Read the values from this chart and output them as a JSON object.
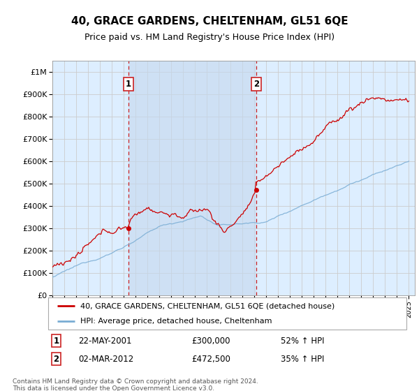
{
  "title": "40, GRACE GARDENS, CHELTENHAM, GL51 6QE",
  "subtitle": "Price paid vs. HM Land Registry's House Price Index (HPI)",
  "ylabel_ticks": [
    "£0",
    "£100K",
    "£200K",
    "£300K",
    "£400K",
    "£500K",
    "£600K",
    "£700K",
    "£800K",
    "£900K",
    "£1M"
  ],
  "ytick_values": [
    0,
    100000,
    200000,
    300000,
    400000,
    500000,
    600000,
    700000,
    800000,
    900000,
    1000000
  ],
  "ylim": [
    0,
    1050000
  ],
  "xlim_start": 1995.0,
  "xlim_end": 2025.5,
  "sale1_x": 2001.38,
  "sale1_y": 300000,
  "sale2_x": 2012.17,
  "sale2_y": 472500,
  "red_line_color": "#cc0000",
  "blue_line_color": "#7aadd4",
  "plot_bg": "#ddeeff",
  "highlight_bg": "#c8dcf0",
  "grid_color": "#e0e0e0",
  "sale_marker_color": "#cc2222",
  "legend_label_red": "40, GRACE GARDENS, CHELTENHAM, GL51 6QE (detached house)",
  "legend_label_blue": "HPI: Average price, detached house, Cheltenham",
  "annotation1_date": "22-MAY-2001",
  "annotation1_price": "£300,000",
  "annotation1_hpi": "52% ↑ HPI",
  "annotation2_date": "02-MAR-2012",
  "annotation2_price": "£472,500",
  "annotation2_hpi": "35% ↑ HPI",
  "footnote": "Contains HM Land Registry data © Crown copyright and database right 2024.\nThis data is licensed under the Open Government Licence v3.0.",
  "title_fontsize": 11,
  "subtitle_fontsize": 9,
  "tick_fontsize": 8,
  "annot_fontsize": 8.5,
  "legend_fontsize": 8
}
